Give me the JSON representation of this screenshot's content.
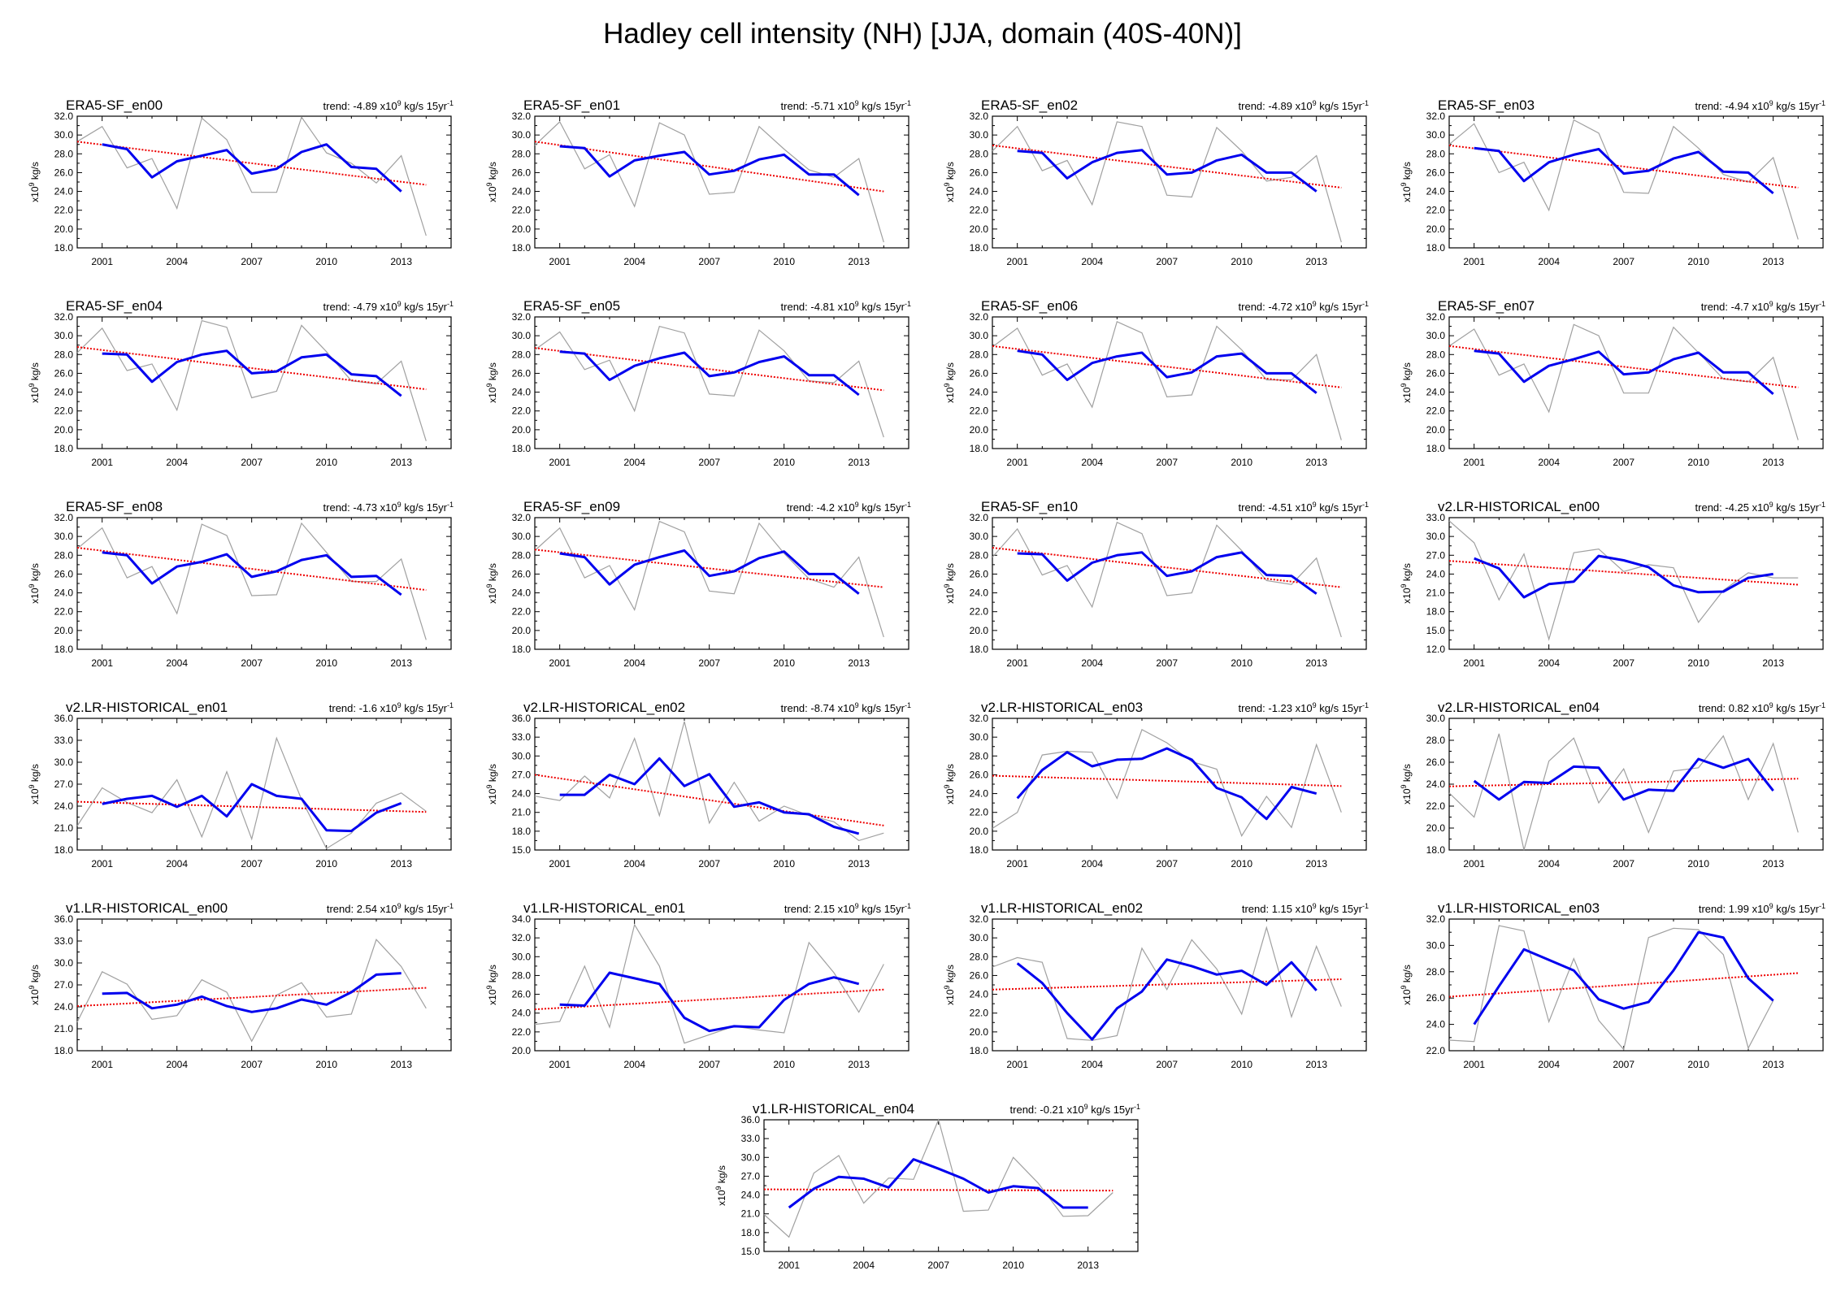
{
  "page": {
    "title": "Hadley cell intensity (NH) [JJA, domain (40S-40N)]",
    "colors": {
      "raw": "#a0a0a0",
      "smooth": "#0000ee",
      "trend": "#ee0000",
      "axis": "#000000"
    }
  },
  "chart_data": [
    {
      "type": "line",
      "title": "ERA5-SF_en00",
      "trend_value": "-4.89",
      "trend_units": "x10^9 kg/s 15yr^-1",
      "ylabel": "x10^9 kg/s",
      "xlim": [
        2000,
        2015
      ],
      "ylim": [
        18,
        32
      ],
      "ystep": 2,
      "ydecimals": 1,
      "xticks": [
        2001,
        2004,
        2007,
        2010,
        2013
      ],
      "raw": [
        29.3,
        30.9,
        26.5,
        27.5,
        22.2,
        31.8,
        29.5,
        23.9,
        23.9,
        31.9,
        28.1,
        27.0,
        24.9,
        27.8,
        19.3
      ],
      "smooth": [
        null,
        29.0,
        28.5,
        25.5,
        27.2,
        27.8,
        28.4,
        25.9,
        26.4,
        28.2,
        29.0,
        26.6,
        26.4,
        24.0,
        null
      ],
      "trend": [
        29.3,
        24.7
      ]
    },
    {
      "type": "line",
      "title": "ERA5-SF_en01",
      "trend_value": "-5.71",
      "trend_units": "x10^9 kg/s 15yr^-1",
      "ylabel": "x10^9 kg/s",
      "xlim": [
        2000,
        2015
      ],
      "ylim": [
        18,
        32
      ],
      "ystep": 2,
      "ydecimals": 1,
      "xticks": [
        2001,
        2004,
        2007,
        2010,
        2013
      ],
      "raw": [
        28.9,
        31.4,
        26.4,
        27.9,
        22.4,
        31.3,
        30.0,
        23.7,
        23.9,
        30.9,
        28.5,
        26.3,
        25.5,
        27.5,
        18.6
      ],
      "smooth": [
        null,
        28.8,
        28.6,
        25.6,
        27.3,
        27.8,
        28.2,
        25.8,
        26.2,
        27.4,
        27.9,
        25.8,
        25.8,
        23.6,
        null
      ],
      "trend": [
        29.3,
        24.0
      ]
    },
    {
      "type": "line",
      "title": "ERA5-SF_en02",
      "trend_value": "-4.89",
      "trend_units": "x10^9 kg/s 15yr^-1",
      "ylabel": "x10^9 kg/s",
      "xlim": [
        2000,
        2015
      ],
      "ylim": [
        18,
        32
      ],
      "ystep": 2,
      "ydecimals": 1,
      "xticks": [
        2001,
        2004,
        2007,
        2010,
        2013
      ],
      "raw": [
        28.3,
        30.9,
        26.2,
        27.3,
        22.6,
        31.4,
        30.9,
        23.6,
        23.4,
        30.8,
        28.3,
        25.1,
        25.5,
        27.8,
        18.6
      ],
      "smooth": [
        null,
        28.3,
        28.1,
        25.4,
        27.1,
        28.1,
        28.4,
        25.8,
        26.0,
        27.3,
        27.9,
        26.0,
        26.0,
        24.0,
        null
      ],
      "trend": [
        28.9,
        24.4
      ]
    },
    {
      "type": "line",
      "title": "ERA5-SF_en03",
      "trend_value": "-4.94",
      "trend_units": "x10^9 kg/s 15yr^-1",
      "ylabel": "x10^9 kg/s",
      "xlim": [
        2000,
        2015
      ],
      "ylim": [
        18,
        32
      ],
      "ystep": 2,
      "ydecimals": 1,
      "xticks": [
        2001,
        2004,
        2007,
        2010,
        2013
      ],
      "raw": [
        29.0,
        31.2,
        26.0,
        27.1,
        22.0,
        31.6,
        30.2,
        23.9,
        23.8,
        30.9,
        28.6,
        25.8,
        25.0,
        27.6,
        18.9
      ],
      "smooth": [
        null,
        28.6,
        28.3,
        25.1,
        27.1,
        27.9,
        28.5,
        25.9,
        26.2,
        27.5,
        28.2,
        26.1,
        26.0,
        23.8,
        null
      ],
      "trend": [
        28.9,
        24.4
      ]
    },
    {
      "type": "line",
      "title": "ERA5-SF_en04",
      "trend_value": "-4.79",
      "trend_units": "x10^9 kg/s 15yr^-1",
      "ylabel": "x10^9 kg/s",
      "xlim": [
        2000,
        2015
      ],
      "ylim": [
        18,
        32
      ],
      "ystep": 2,
      "ydecimals": 1,
      "xticks": [
        2001,
        2004,
        2007,
        2010,
        2013
      ],
      "raw": [
        28.2,
        30.8,
        26.3,
        27.0,
        22.1,
        31.6,
        30.9,
        23.4,
        24.1,
        31.1,
        28.3,
        25.2,
        24.9,
        27.3,
        18.8
      ],
      "smooth": [
        null,
        28.1,
        28.0,
        25.1,
        27.2,
        28.0,
        28.4,
        26.0,
        26.2,
        27.7,
        28.0,
        25.9,
        25.7,
        23.6,
        null
      ],
      "trend": [
        28.8,
        24.3
      ]
    },
    {
      "type": "line",
      "title": "ERA5-SF_en05",
      "trend_value": "-4.81",
      "trend_units": "x10^9 kg/s 15yr^-1",
      "ylabel": "x10^9 kg/s",
      "xlim": [
        2000,
        2015
      ],
      "ylim": [
        18,
        32
      ],
      "ystep": 2,
      "ydecimals": 1,
      "xticks": [
        2001,
        2004,
        2007,
        2010,
        2013
      ],
      "raw": [
        28.5,
        30.4,
        26.4,
        27.4,
        22.0,
        31.0,
        30.3,
        23.8,
        23.6,
        30.6,
        28.4,
        25.2,
        25.0,
        27.3,
        19.2
      ],
      "smooth": [
        null,
        28.3,
        28.1,
        25.3,
        26.8,
        27.6,
        28.2,
        25.7,
        26.1,
        27.2,
        27.8,
        25.8,
        25.8,
        23.7,
        null
      ],
      "trend": [
        28.7,
        24.2
      ]
    },
    {
      "type": "line",
      "title": "ERA5-SF_en06",
      "trend_value": "-4.72",
      "trend_units": "x10^9 kg/s 15yr^-1",
      "ylabel": "x10^9 kg/s",
      "xlim": [
        2000,
        2015
      ],
      "ylim": [
        18,
        32
      ],
      "ystep": 2,
      "ydecimals": 1,
      "xticks": [
        2001,
        2004,
        2007,
        2010,
        2013
      ],
      "raw": [
        28.8,
        30.8,
        25.8,
        27.0,
        22.4,
        31.5,
        30.3,
        23.5,
        23.7,
        31.0,
        28.5,
        25.3,
        25.3,
        28.0,
        18.9
      ],
      "smooth": [
        null,
        28.4,
        28.0,
        25.3,
        27.1,
        27.8,
        28.2,
        25.6,
        26.1,
        27.8,
        28.1,
        26.0,
        26.0,
        23.9,
        null
      ],
      "trend": [
        28.9,
        24.5
      ]
    },
    {
      "type": "line",
      "title": "ERA5-SF_en07",
      "trend_value": "-4.7",
      "trend_units": "x10^9 kg/s 15yr^-1",
      "ylabel": "x10^9 kg/s",
      "xlim": [
        2000,
        2015
      ],
      "ylim": [
        18,
        32
      ],
      "ystep": 2,
      "ydecimals": 1,
      "xticks": [
        2001,
        2004,
        2007,
        2010,
        2013
      ],
      "raw": [
        28.9,
        30.7,
        25.8,
        27.0,
        21.9,
        31.2,
        30.0,
        23.9,
        23.9,
        30.9,
        28.2,
        25.4,
        25.1,
        27.7,
        18.9
      ],
      "smooth": [
        null,
        28.4,
        28.1,
        25.1,
        26.8,
        27.5,
        28.3,
        25.9,
        26.1,
        27.5,
        28.2,
        26.1,
        26.1,
        23.8,
        null
      ],
      "trend": [
        28.9,
        24.5
      ]
    },
    {
      "type": "line",
      "title": "ERA5-SF_en08",
      "trend_value": "-4.73",
      "trend_units": "x10^9 kg/s 15yr^-1",
      "ylabel": "x10^9 kg/s",
      "xlim": [
        2000,
        2015
      ],
      "ylim": [
        18,
        32
      ],
      "ystep": 2,
      "ydecimals": 1,
      "xticks": [
        2001,
        2004,
        2007,
        2010,
        2013
      ],
      "raw": [
        28.7,
        30.9,
        25.6,
        26.8,
        21.8,
        31.3,
        30.1,
        23.7,
        23.8,
        31.4,
        28.3,
        25.2,
        25.2,
        27.6,
        19.0
      ],
      "smooth": [
        null,
        28.3,
        28.0,
        25.0,
        26.8,
        27.3,
        28.1,
        25.7,
        26.3,
        27.5,
        28.0,
        25.7,
        25.8,
        23.8,
        null
      ],
      "trend": [
        28.8,
        24.3
      ]
    },
    {
      "type": "line",
      "title": "ERA5-SF_en09",
      "trend_value": "-4.2",
      "trend_units": "x10^9 kg/s 15yr^-1",
      "ylabel": "x10^9 kg/s",
      "xlim": [
        2000,
        2015
      ],
      "ylim": [
        18,
        32
      ],
      "ystep": 2,
      "ydecimals": 1,
      "xticks": [
        2001,
        2004,
        2007,
        2010,
        2013
      ],
      "raw": [
        28.5,
        30.9,
        25.6,
        26.9,
        22.2,
        31.6,
        30.5,
        24.2,
        23.9,
        31.4,
        28.2,
        25.5,
        24.6,
        27.8,
        19.3
      ],
      "smooth": [
        null,
        28.2,
        27.8,
        24.9,
        27.0,
        27.8,
        28.5,
        25.8,
        26.3,
        27.7,
        28.4,
        26.0,
        26.0,
        23.9,
        null
      ],
      "trend": [
        28.6,
        24.6
      ]
    },
    {
      "type": "line",
      "title": "ERA5-SF_en10",
      "trend_value": "-4.51",
      "trend_units": "x10^9 kg/s 15yr^-1",
      "ylabel": "x10^9 kg/s",
      "xlim": [
        2000,
        2015
      ],
      "ylim": [
        18,
        32
      ],
      "ystep": 2,
      "ydecimals": 1,
      "xticks": [
        2001,
        2004,
        2007,
        2010,
        2013
      ],
      "raw": [
        27.8,
        30.8,
        25.9,
        26.9,
        22.5,
        31.5,
        30.3,
        23.7,
        24.0,
        31.2,
        28.5,
        25.3,
        24.9,
        27.7,
        19.3
      ],
      "smooth": [
        null,
        28.2,
        28.1,
        25.3,
        27.2,
        28.0,
        28.3,
        25.8,
        26.3,
        27.8,
        28.3,
        25.9,
        25.8,
        23.9,
        null
      ],
      "trend": [
        28.8,
        24.6
      ]
    },
    {
      "type": "line",
      "title": "v2.LR-HISTORICAL_en00",
      "trend_value": "-4.25",
      "trend_units": "x10^9 kg/s 15yr^-1",
      "ylabel": "x10^9 kg/s",
      "xlim": [
        2000,
        2015
      ],
      "ylim": [
        12,
        33
      ],
      "ystep": 3,
      "ydecimals": 1,
      "xticks": [
        2001,
        2004,
        2007,
        2010,
        2013
      ],
      "raw": [
        32.5,
        29.0,
        19.9,
        27.2,
        13.6,
        27.4,
        28.0,
        24.4,
        25.5,
        25.0,
        16.3,
        21.4,
        24.2,
        23.4,
        23.4
      ],
      "smooth": [
        null,
        26.5,
        24.9,
        20.3,
        22.4,
        22.8,
        26.9,
        26.2,
        25.1,
        22.2,
        21.1,
        21.2,
        23.4,
        24.0,
        null
      ],
      "trend": [
        26.1,
        22.3
      ]
    },
    {
      "type": "line",
      "title": "v2.LR-HISTORICAL_en01",
      "trend_value": "-1.6",
      "trend_units": "x10^9 kg/s 15yr^-1",
      "ylabel": "x10^9 kg/s",
      "xlim": [
        2000,
        2015
      ],
      "ylim": [
        18,
        36
      ],
      "ystep": 3,
      "ydecimals": 1,
      "xticks": [
        2001,
        2004,
        2007,
        2010,
        2013
      ],
      "raw": [
        21.3,
        26.5,
        24.5,
        23.1,
        27.6,
        19.8,
        28.7,
        19.5,
        33.3,
        24.9,
        18.2,
        20.3,
        24.4,
        25.8,
        23.3
      ],
      "smooth": [
        null,
        24.3,
        25.0,
        25.4,
        23.9,
        25.4,
        22.6,
        27.0,
        25.4,
        25.0,
        20.7,
        20.6,
        23.1,
        24.4,
        null
      ],
      "trend": [
        24.6,
        23.2
      ]
    },
    {
      "type": "line",
      "title": "v2.LR-HISTORICAL_en02",
      "trend_value": "-8.74",
      "trend_units": "x10^9 kg/s 15yr^-1",
      "ylabel": "x10^9 kg/s",
      "xlim": [
        2000,
        2015
      ],
      "ylim": [
        15,
        36
      ],
      "ystep": 3,
      "ydecimals": 1,
      "xticks": [
        2001,
        2004,
        2007,
        2010,
        2013
      ],
      "raw": [
        23.6,
        22.9,
        26.8,
        23.3,
        32.8,
        20.5,
        35.5,
        19.3,
        25.8,
        19.6,
        22.0,
        20.5,
        19.5,
        16.5,
        17.7
      ],
      "smooth": [
        null,
        23.8,
        23.8,
        27.0,
        25.5,
        29.6,
        25.2,
        27.1,
        21.9,
        22.6,
        21.0,
        20.7,
        18.7,
        17.6,
        null
      ],
      "trend": [
        27.0,
        18.9
      ]
    },
    {
      "type": "line",
      "title": "v2.LR-HISTORICAL_en03",
      "trend_value": "-1.23",
      "trend_units": "x10^9 kg/s 15yr^-1",
      "ylabel": "x10^9 kg/s",
      "xlim": [
        2000,
        2015
      ],
      "ylim": [
        18,
        32
      ],
      "ystep": 2,
      "ydecimals": 1,
      "xticks": [
        2001,
        2004,
        2007,
        2010,
        2013
      ],
      "raw": [
        20.3,
        22.0,
        28.1,
        28.5,
        28.4,
        23.5,
        30.8,
        29.4,
        27.4,
        26.6,
        19.5,
        23.7,
        20.4,
        29.2,
        22.0
      ],
      "smooth": [
        null,
        23.5,
        26.5,
        28.4,
        26.9,
        27.6,
        27.7,
        28.8,
        27.6,
        24.6,
        23.6,
        21.3,
        24.7,
        24.0,
        null
      ],
      "trend": [
        25.9,
        24.8
      ]
    },
    {
      "type": "line",
      "title": "v2.LR-HISTORICAL_en04",
      "trend_value": "0.82",
      "trend_units": "x10^9 kg/s 15yr^-1",
      "ylabel": "x10^9 kg/s",
      "xlim": [
        2000,
        2015
      ],
      "ylim": [
        18,
        30
      ],
      "ystep": 2,
      "ydecimals": 1,
      "xticks": [
        2001,
        2004,
        2007,
        2010,
        2013
      ],
      "raw": [
        23.2,
        21.0,
        28.6,
        18.0,
        26.1,
        28.2,
        22.3,
        25.4,
        19.6,
        25.2,
        25.5,
        28.4,
        22.6,
        27.7,
        19.6
      ],
      "smooth": [
        null,
        24.3,
        22.6,
        24.2,
        24.1,
        25.6,
        25.5,
        22.6,
        23.5,
        23.4,
        26.3,
        25.5,
        26.3,
        23.4,
        null
      ],
      "trend": [
        23.8,
        24.5
      ]
    },
    {
      "type": "line",
      "title": "v1.LR-HISTORICAL_en00",
      "trend_value": "2.54",
      "trend_units": "x10^9 kg/s 15yr^-1",
      "ylabel": "x10^9 kg/s",
      "xlim": [
        2000,
        2015
      ],
      "ylim": [
        18,
        36
      ],
      "ystep": 3,
      "ydecimals": 1,
      "xticks": [
        2001,
        2004,
        2007,
        2010,
        2013
      ],
      "raw": [
        21.9,
        28.8,
        27.1,
        22.3,
        22.8,
        27.7,
        26.0,
        19.3,
        25.6,
        27.3,
        22.6,
        23.0,
        33.2,
        29.5,
        23.8
      ],
      "smooth": [
        null,
        25.8,
        25.9,
        23.8,
        24.3,
        25.4,
        24.1,
        23.3,
        23.8,
        25.0,
        24.3,
        26.0,
        28.4,
        28.6,
        null
      ],
      "trend": [
        24.1,
        26.6
      ]
    },
    {
      "type": "line",
      "title": "v1.LR-HISTORICAL_en01",
      "trend_value": "2.15",
      "trend_units": "x10^9 kg/s 15yr^-1",
      "ylabel": "x10^9 kg/s",
      "xlim": [
        2000,
        2015
      ],
      "ylim": [
        20,
        34
      ],
      "ystep": 2,
      "ydecimals": 1,
      "xticks": [
        2001,
        2004,
        2007,
        2010,
        2013
      ],
      "raw": [
        22.8,
        23.1,
        29.0,
        22.5,
        33.4,
        29.0,
        20.8,
        21.7,
        22.6,
        22.2,
        21.9,
        31.5,
        28.3,
        24.1,
        29.2
      ],
      "smooth": [
        null,
        24.9,
        24.8,
        28.3,
        27.7,
        27.1,
        23.5,
        22.1,
        22.6,
        22.5,
        25.4,
        27.1,
        27.8,
        27.1,
        null
      ],
      "trend": [
        24.4,
        26.5
      ]
    },
    {
      "type": "line",
      "title": "v1.LR-HISTORICAL_en02",
      "trend_value": "1.15",
      "trend_units": "x10^9 kg/s 15yr^-1",
      "ylabel": "x10^9 kg/s",
      "xlim": [
        2000,
        2015
      ],
      "ylim": [
        18,
        32
      ],
      "ystep": 2,
      "ydecimals": 1,
      "xticks": [
        2001,
        2004,
        2007,
        2010,
        2013
      ],
      "raw": [
        26.9,
        27.9,
        27.4,
        19.3,
        19.1,
        19.6,
        28.9,
        24.5,
        29.8,
        26.7,
        21.9,
        31.1,
        21.6,
        29.1,
        22.7
      ],
      "smooth": [
        null,
        27.3,
        25.2,
        22.0,
        19.2,
        22.5,
        24.3,
        27.7,
        27.0,
        26.1,
        26.5,
        25.0,
        27.4,
        24.4,
        null
      ],
      "trend": [
        24.5,
        25.6
      ]
    },
    {
      "type": "line",
      "title": "v1.LR-HISTORICAL_en03",
      "trend_value": "1.99",
      "trend_units": "x10^9 kg/s 15yr^-1",
      "ylabel": "x10^9 kg/s",
      "xlim": [
        2000,
        2015
      ],
      "ylim": [
        22,
        32
      ],
      "ystep": 2,
      "ydecimals": 1,
      "xticks": [
        2001,
        2004,
        2007,
        2010,
        2013
      ],
      "raw": [
        22.8,
        22.7,
        31.5,
        31.1,
        24.2,
        29.0,
        24.3,
        22.1,
        30.6,
        31.3,
        31.2,
        29.3,
        22.2,
        25.8,
        null
      ],
      "smooth": [
        null,
        24.0,
        26.9,
        29.7,
        28.9,
        28.1,
        25.9,
        25.2,
        25.7,
        28.1,
        31.0,
        30.6,
        27.5,
        25.8,
        null
      ],
      "trend": [
        26.1,
        27.9
      ]
    },
    {
      "type": "line",
      "title": "v1.LR-HISTORICAL_en04",
      "trend_value": "-0.21",
      "trend_units": "x10^9 kg/s 15yr^-1",
      "ylabel": "x10^9 kg/s",
      "xlim": [
        2000,
        2015
      ],
      "ylim": [
        15,
        36
      ],
      "ystep": 3,
      "ydecimals": 1,
      "xticks": [
        2001,
        2004,
        2007,
        2010,
        2013
      ],
      "raw": [
        20.9,
        17.3,
        27.5,
        30.3,
        22.7,
        26.7,
        26.5,
        36.0,
        21.4,
        21.6,
        30.0,
        25.9,
        20.6,
        20.7,
        24.4
      ],
      "smooth": [
        null,
        22.0,
        25.0,
        26.9,
        26.6,
        25.2,
        29.7,
        28.2,
        26.6,
        24.4,
        25.4,
        25.1,
        22.0,
        22.0,
        null
      ],
      "trend": [
        24.9,
        24.7
      ]
    }
  ]
}
